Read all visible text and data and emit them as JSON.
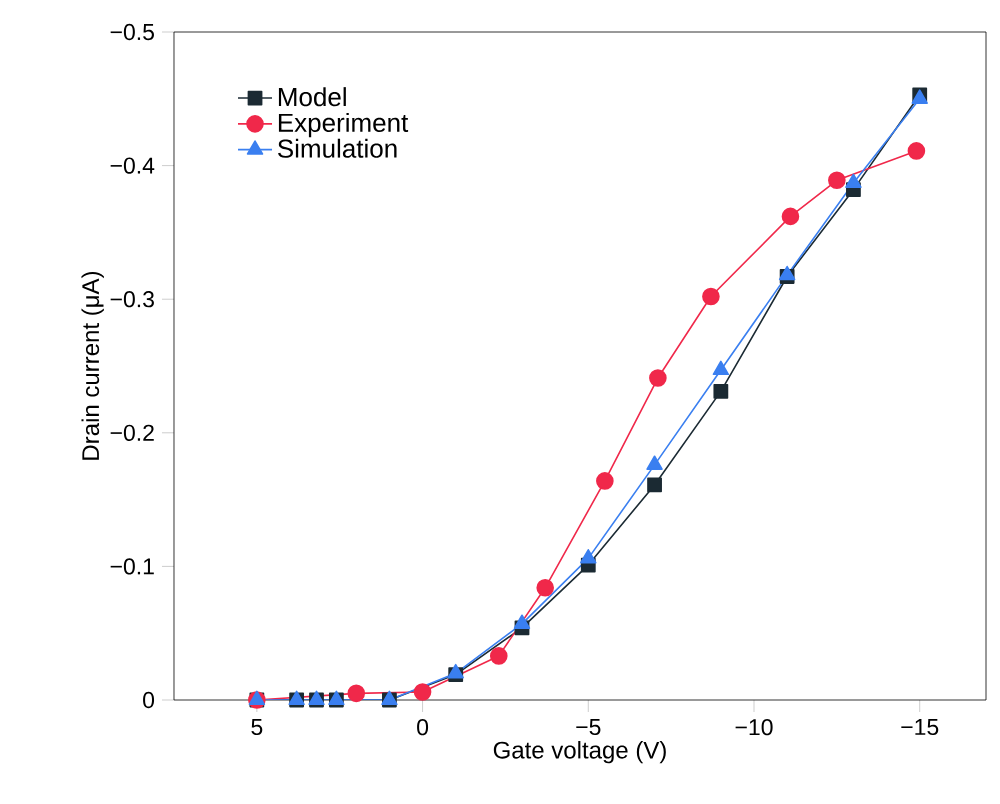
{
  "chart_data": {
    "type": "line",
    "xlabel": "Gate voltage (V)",
    "ylabel": "Drain current (μA)",
    "xlim": [
      7.5,
      -17
    ],
    "ylim": [
      0,
      -0.5
    ],
    "xticks": [
      5,
      0,
      {
        "value": -5,
        "label": "−5"
      },
      {
        "value": -10,
        "label": "−10"
      },
      {
        "value": -15,
        "label": "−15"
      }
    ],
    "yticks": [
      0,
      {
        "value": -0.1,
        "label": "−0.1"
      },
      {
        "value": -0.2,
        "label": "−0.2"
      },
      {
        "value": -0.3,
        "label": "−0.3"
      },
      {
        "value": -0.4,
        "label": "−0.4"
      },
      {
        "value": -0.5,
        "label": "−0.5"
      }
    ],
    "grid": false,
    "legend": "top left",
    "line_style": "solid",
    "series": [
      {
        "name": "Model",
        "color": "#1b2a33",
        "marker": "square",
        "x": [
          5,
          3.8,
          3.2,
          2.6,
          1,
          -1,
          -3,
          -5,
          -7,
          -9,
          -11,
          -13,
          -15
        ],
        "values": [
          0,
          0,
          0,
          0,
          0,
          -0.019,
          -0.054,
          -0.101,
          -0.161,
          -0.231,
          -0.317,
          -0.382,
          -0.453
        ]
      },
      {
        "name": "Experiment",
        "color": "#f0284a",
        "marker": "circle",
        "x": [
          5,
          2,
          0,
          -2.3,
          -3.7,
          -5.5,
          -7.1,
          -8.7,
          -11.1,
          -12.5,
          -14.9
        ],
        "values": [
          0,
          -0.005,
          -0.006,
          -0.033,
          -0.084,
          -0.164,
          -0.241,
          -0.302,
          -0.362,
          -0.389,
          -0.411
        ]
      },
      {
        "name": "Simulation",
        "color": "#3a7ff0",
        "marker": "triangle",
        "x": [
          5,
          3.8,
          3.2,
          2.6,
          1,
          -1,
          -3,
          -5,
          -7,
          -9,
          -11,
          -13,
          -15
        ],
        "values": [
          0,
          0,
          0,
          0,
          0,
          -0.02,
          -0.057,
          -0.106,
          -0.176,
          -0.247,
          -0.318,
          -0.387,
          -0.45
        ]
      }
    ]
  }
}
